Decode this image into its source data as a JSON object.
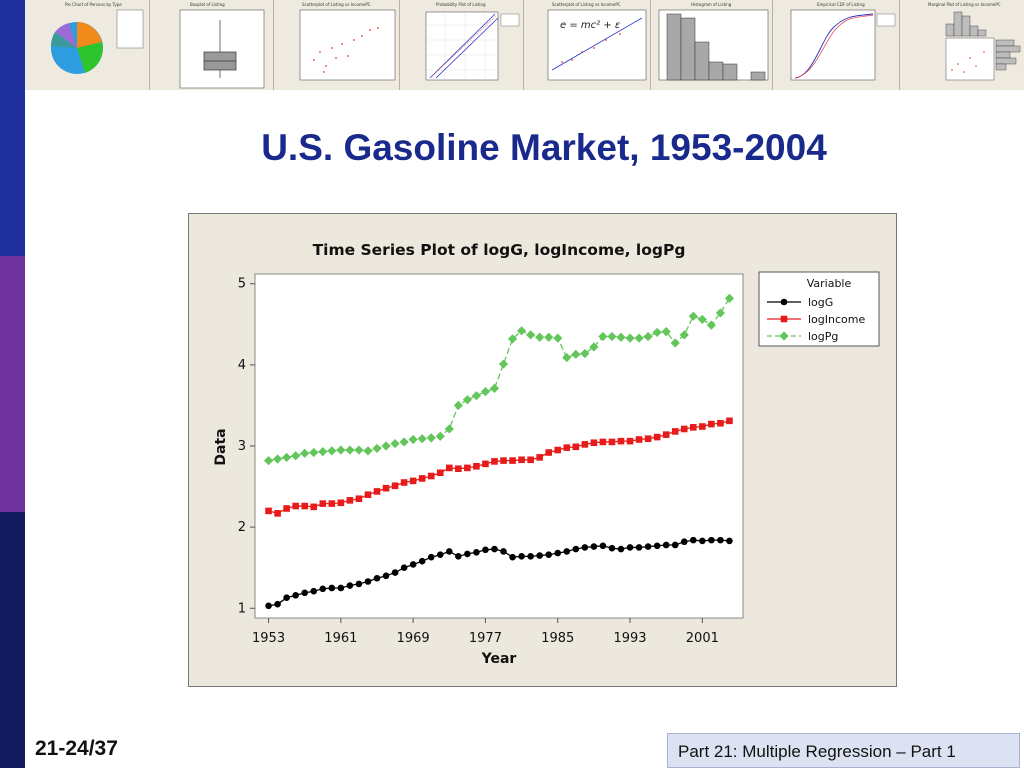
{
  "slide": {
    "title": "U.S. Gasoline Market, 1953-2004",
    "number": "21-24/37",
    "footer": "Part 21: Multiple Regression – Part 1",
    "left_bar_colors": [
      "#1f2f9c",
      "#6f34a0",
      "#141a60"
    ]
  },
  "thumbnail_strip": {
    "thumbnails": [
      {
        "title": "Pie Chart of Persons by Type",
        "kind": "pie"
      },
      {
        "title": "Boxplot of Listing",
        "kind": "boxplot"
      },
      {
        "title": "Scatterplot of Listing vs IncomePC",
        "kind": "scatter"
      },
      {
        "title": "Probability Plot of Listing",
        "kind": "probability"
      },
      {
        "title": "Scatterplot of Listing vs IncomePC",
        "kind": "fitted-line",
        "caption": "e = mc² + ε"
      },
      {
        "title": "Histogram of Listing",
        "kind": "histogram"
      },
      {
        "title": "Empirical CDF of Listing",
        "kind": "cdf"
      },
      {
        "title": "Marginal Plot of Listing vs IncomePC",
        "kind": "marginal"
      }
    ]
  },
  "chart_data": {
    "type": "line",
    "title": "Time Series Plot of logG, logIncome, logPg",
    "xlabel": "Year",
    "ylabel": "Data",
    "xlim": [
      1953,
      2004
    ],
    "ylim": [
      1,
      5
    ],
    "x_ticks": [
      1953,
      1961,
      1969,
      1977,
      1985,
      1993,
      2001
    ],
    "y_ticks": [
      1,
      2,
      3,
      4,
      5
    ],
    "grid": false,
    "legend": {
      "title": "Variable",
      "position": "top-right"
    },
    "x": [
      1953,
      1954,
      1955,
      1956,
      1957,
      1958,
      1959,
      1960,
      1961,
      1962,
      1963,
      1964,
      1965,
      1966,
      1967,
      1968,
      1969,
      1970,
      1971,
      1972,
      1973,
      1974,
      1975,
      1976,
      1977,
      1978,
      1979,
      1980,
      1981,
      1982,
      1983,
      1984,
      1985,
      1986,
      1987,
      1988,
      1989,
      1990,
      1991,
      1992,
      1993,
      1994,
      1995,
      1996,
      1997,
      1998,
      1999,
      2000,
      2001,
      2002,
      2003,
      2004
    ],
    "series": [
      {
        "name": "logG",
        "color": "#000000",
        "marker": "circle",
        "dash": "solid",
        "values": [
          1.03,
          1.05,
          1.13,
          1.16,
          1.19,
          1.21,
          1.24,
          1.25,
          1.25,
          1.28,
          1.3,
          1.33,
          1.37,
          1.4,
          1.44,
          1.5,
          1.54,
          1.58,
          1.63,
          1.66,
          1.7,
          1.64,
          1.67,
          1.69,
          1.72,
          1.73,
          1.7,
          1.63,
          1.64,
          1.64,
          1.65,
          1.66,
          1.68,
          1.7,
          1.73,
          1.75,
          1.76,
          1.77,
          1.74,
          1.73,
          1.75,
          1.75,
          1.76,
          1.77,
          1.78,
          1.78,
          1.82,
          1.84,
          1.83,
          1.84,
          1.84,
          1.83
        ]
      },
      {
        "name": "logIncome",
        "color": "#e81b1b",
        "marker": "square",
        "dash": "solid",
        "values": [
          2.2,
          2.17,
          2.23,
          2.26,
          2.26,
          2.25,
          2.29,
          2.29,
          2.3,
          2.33,
          2.35,
          2.4,
          2.44,
          2.48,
          2.51,
          2.55,
          2.57,
          2.6,
          2.63,
          2.67,
          2.73,
          2.72,
          2.73,
          2.75,
          2.78,
          2.81,
          2.82,
          2.82,
          2.83,
          2.83,
          2.86,
          2.92,
          2.95,
          2.98,
          2.99,
          3.02,
          3.04,
          3.05,
          3.05,
          3.06,
          3.06,
          3.08,
          3.09,
          3.11,
          3.14,
          3.18,
          3.21,
          3.23,
          3.24,
          3.27,
          3.28,
          3.31
        ]
      },
      {
        "name": "logPg",
        "color": "#63c65a",
        "marker": "diamond",
        "dash": "dashed",
        "values": [
          2.82,
          2.84,
          2.86,
          2.88,
          2.91,
          2.92,
          2.93,
          2.94,
          2.95,
          2.95,
          2.95,
          2.94,
          2.97,
          3.0,
          3.03,
          3.05,
          3.08,
          3.09,
          3.1,
          3.12,
          3.21,
          3.5,
          3.57,
          3.62,
          3.67,
          3.71,
          4.01,
          4.32,
          4.42,
          4.37,
          4.34,
          4.34,
          4.33,
          4.09,
          4.13,
          4.14,
          4.22,
          4.35,
          4.35,
          4.34,
          4.33,
          4.33,
          4.35,
          4.4,
          4.41,
          4.27,
          4.37,
          4.6,
          4.56,
          4.49,
          4.64,
          4.82
        ]
      }
    ]
  }
}
